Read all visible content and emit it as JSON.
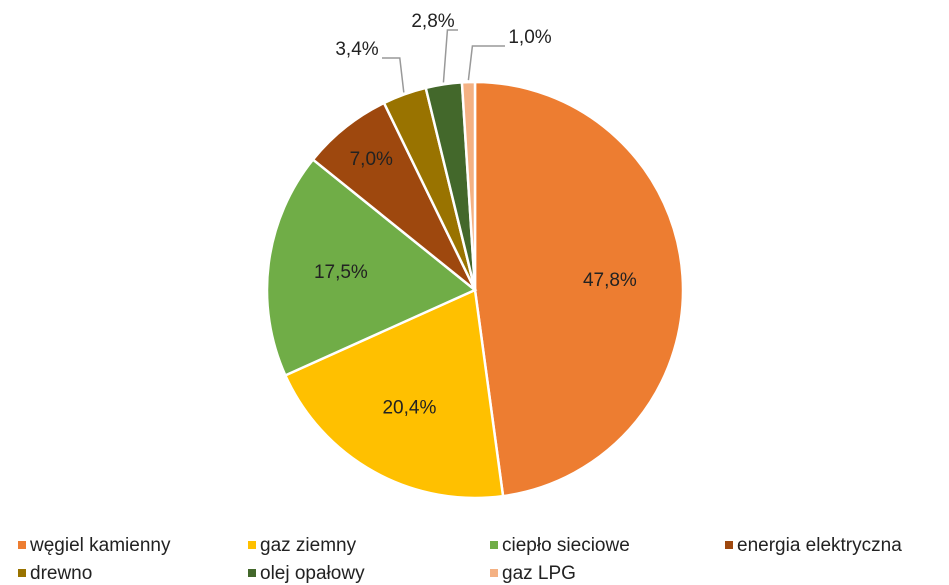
{
  "chart_data": {
    "type": "pie",
    "categories": [
      "węgiel kamienny",
      "gaz ziemny",
      "ciepło sieciowe",
      "energia elektryczna",
      "drewno",
      "olej opałowy",
      "gaz LPG"
    ],
    "values": [
      47.8,
      20.4,
      17.5,
      7.0,
      3.4,
      2.8,
      1.0
    ],
    "value_labels": [
      "47,8%",
      "20,4%",
      "17,5%",
      "7,0%",
      "3,4%",
      "2,8%",
      "1,0%"
    ],
    "colors": [
      "#ED7D31",
      "#FFC000",
      "#70AD47",
      "#9E480E",
      "#997300",
      "#43682B",
      "#F4B183"
    ],
    "legend": "bottom"
  }
}
